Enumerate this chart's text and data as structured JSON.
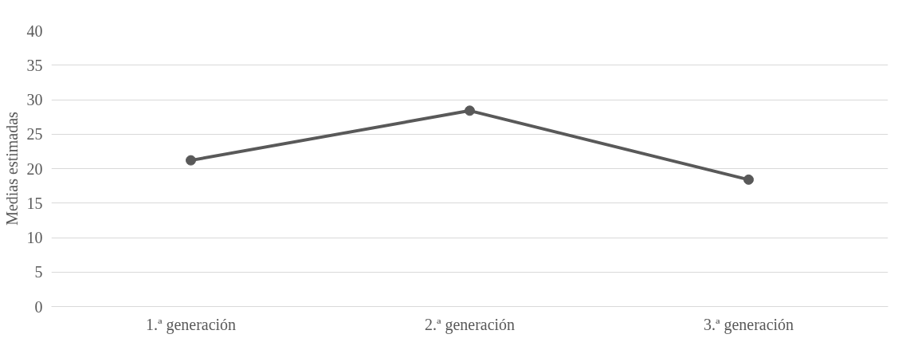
{
  "chart_data": {
    "type": "line",
    "ylabel": "Medias estimadas",
    "categories": [
      "1.ª generación",
      "2.ª generación",
      "3.ª generación"
    ],
    "series": [
      {
        "color": "#595959",
        "values": [
          21.2,
          28.4,
          18.4
        ]
      }
    ],
    "ylim": [
      0,
      40
    ],
    "yticks": [
      0,
      5,
      10,
      15,
      20,
      25,
      30,
      35,
      40
    ],
    "grid": "y",
    "marker": "circle",
    "line_style": "solid"
  }
}
